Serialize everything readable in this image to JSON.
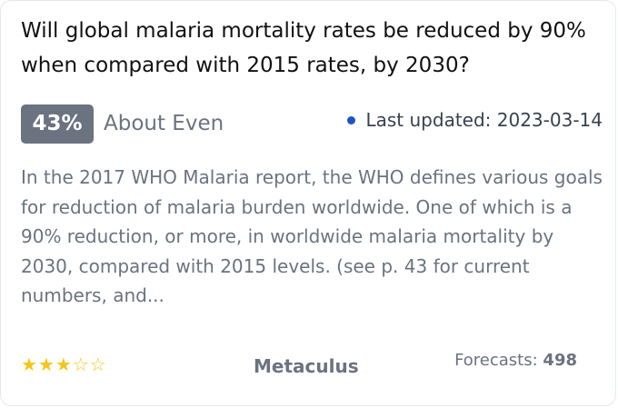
{
  "question": {
    "title": "Will global malaria mortality rates be reduced by 90% when compared with 2015 rates, by 2030?"
  },
  "probability": {
    "value": "43%",
    "label": "About Even"
  },
  "updated": {
    "text": "Last updated: 2023-03-14",
    "dot_color": "#2151c7"
  },
  "description": {
    "text": "In the 2017 WHO Malaria report, the WHO defines various goals for reduction of malaria burden worldwide. One of which is a 90% reduction, or more, in worldwide malaria mortality by 2030, compared with 2015 levels. (see p. 43 for current numbers, and..."
  },
  "footer": {
    "stars": [
      "★",
      "★",
      "★",
      "☆",
      "☆"
    ],
    "rating": 3,
    "rating_max": 5,
    "source": "Metaculus",
    "forecasts_label": "Forecasts:",
    "forecasts_count": "498"
  },
  "colors": {
    "badge": "#6b7280",
    "star": "#f5c518"
  }
}
